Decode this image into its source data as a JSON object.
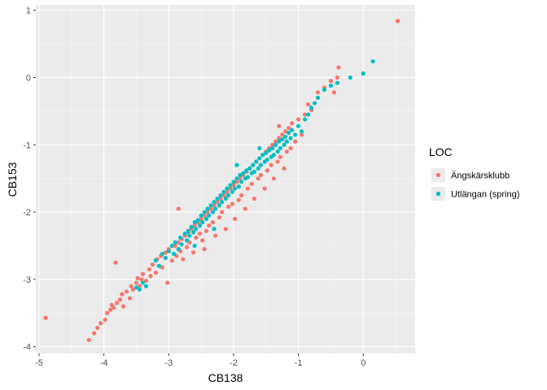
{
  "chart_data": {
    "type": "scatter",
    "xlabel": "CB138",
    "ylabel": "CB153",
    "xlim": [
      -5.05,
      0.8
    ],
    "ylim": [
      -4.1,
      1.08
    ],
    "x_ticks": [
      -5,
      -4,
      -3,
      -2,
      -1,
      0
    ],
    "y_ticks": [
      -4,
      -3,
      -2,
      -1,
      0,
      1
    ],
    "x_tick_labels": [
      "-5",
      "-4",
      "-3",
      "-2",
      "-1",
      "0"
    ],
    "y_tick_labels": [
      "-4",
      "-3",
      "-2",
      "-1",
      "0",
      "1"
    ],
    "grid": true,
    "panel_background": "#ebebeb",
    "legend": {
      "title": "LOC",
      "placement": "right",
      "entries": [
        {
          "label": "Ängskärsklubb",
          "color": "#f8766d"
        },
        {
          "label": "Utlängan (spring)",
          "color": "#00bfc4"
        }
      ]
    },
    "series": [
      {
        "name": "Ängskärsklubb",
        "color": "#f8766d",
        "points": [
          [
            -4.9,
            -3.57
          ],
          [
            -4.23,
            -3.9
          ],
          [
            -4.15,
            -3.8
          ],
          [
            -4.1,
            -3.72
          ],
          [
            -4.05,
            -3.65
          ],
          [
            -3.98,
            -3.6
          ],
          [
            -3.95,
            -3.5
          ],
          [
            -3.9,
            -3.45
          ],
          [
            -3.88,
            -3.38
          ],
          [
            -3.85,
            -3.42
          ],
          [
            -3.82,
            -2.75
          ],
          [
            -3.8,
            -3.35
          ],
          [
            -3.75,
            -3.3
          ],
          [
            -3.72,
            -3.22
          ],
          [
            -3.7,
            -3.4
          ],
          [
            -3.65,
            -3.18
          ],
          [
            -3.6,
            -3.28
          ],
          [
            -3.58,
            -3.1
          ],
          [
            -3.55,
            -3.15
          ],
          [
            -3.5,
            -3.05
          ],
          [
            -3.48,
            -2.98
          ],
          [
            -3.45,
            -3.1
          ],
          [
            -3.42,
            -3.0
          ],
          [
            -3.4,
            -2.92
          ],
          [
            -3.35,
            -3.02
          ],
          [
            -3.3,
            -2.85
          ],
          [
            -3.28,
            -2.95
          ],
          [
            -3.25,
            -2.78
          ],
          [
            -3.2,
            -2.9
          ],
          [
            -3.18,
            -2.7
          ],
          [
            -3.12,
            -2.65
          ],
          [
            -3.1,
            -2.82
          ],
          [
            -3.05,
            -2.6
          ],
          [
            -3.02,
            -3.05
          ],
          [
            -3.0,
            -2.55
          ],
          [
            -2.95,
            -2.72
          ],
          [
            -2.9,
            -2.5
          ],
          [
            -2.88,
            -2.65
          ],
          [
            -2.85,
            -2.45
          ],
          [
            -2.82,
            -2.58
          ],
          [
            -2.8,
            -2.4
          ],
          [
            -2.78,
            -2.7
          ],
          [
            -2.75,
            -2.35
          ],
          [
            -2.72,
            -2.52
          ],
          [
            -2.7,
            -2.3
          ],
          [
            -2.68,
            -2.45
          ],
          [
            -2.65,
            -2.25
          ],
          [
            -2.62,
            -2.6
          ],
          [
            -2.6,
            -2.2
          ],
          [
            -2.58,
            -2.38
          ],
          [
            -2.55,
            -2.15
          ],
          [
            -2.52,
            -2.32
          ],
          [
            -2.5,
            -2.1
          ],
          [
            -2.48,
            -2.42
          ],
          [
            -2.45,
            -2.05
          ],
          [
            -2.42,
            -2.28
          ],
          [
            -2.4,
            -2.0
          ],
          [
            -2.38,
            -2.2
          ],
          [
            -2.35,
            -1.95
          ],
          [
            -2.32,
            -2.15
          ],
          [
            -2.3,
            -1.9
          ],
          [
            -2.28,
            -2.35
          ],
          [
            -2.25,
            -1.85
          ],
          [
            -2.22,
            -2.08
          ],
          [
            -2.2,
            -1.8
          ],
          [
            -2.18,
            -2.0
          ],
          [
            -2.15,
            -1.75
          ],
          [
            -2.12,
            -2.25
          ],
          [
            -2.1,
            -1.7
          ],
          [
            -2.08,
            -1.92
          ],
          [
            -2.05,
            -1.65
          ],
          [
            -2.02,
            -1.88
          ],
          [
            -2.0,
            -1.6
          ],
          [
            -1.98,
            -2.1
          ],
          [
            -1.95,
            -1.55
          ],
          [
            -1.92,
            -1.82
          ],
          [
            -1.9,
            -1.5
          ],
          [
            -1.88,
            -1.75
          ],
          [
            -1.85,
            -1.45
          ],
          [
            -1.82,
            -1.95
          ],
          [
            -1.8,
            -1.4
          ],
          [
            -1.78,
            -1.65
          ],
          [
            -1.75,
            -1.35
          ],
          [
            -1.72,
            -1.58
          ],
          [
            -1.7,
            -1.3
          ],
          [
            -1.68,
            -1.8
          ],
          [
            -1.65,
            -1.25
          ],
          [
            -1.62,
            -1.5
          ],
          [
            -1.6,
            -1.2
          ],
          [
            -1.58,
            -1.45
          ],
          [
            -1.55,
            -1.15
          ],
          [
            -1.52,
            -1.65
          ],
          [
            -1.5,
            -1.1
          ],
          [
            -1.48,
            -1.38
          ],
          [
            -1.45,
            -1.05
          ],
          [
            -1.42,
            -1.3
          ],
          [
            -1.4,
            -1.0
          ],
          [
            -1.38,
            -1.5
          ],
          [
            -1.35,
            -0.95
          ],
          [
            -1.32,
            -1.25
          ],
          [
            -1.3,
            -0.9
          ],
          [
            -1.28,
            -1.18
          ],
          [
            -1.25,
            -0.85
          ],
          [
            -1.22,
            -1.35
          ],
          [
            -1.2,
            -0.8
          ],
          [
            -1.18,
            -1.1
          ],
          [
            -1.15,
            -0.75
          ],
          [
            -1.12,
            -1.05
          ],
          [
            -1.1,
            -0.68
          ],
          [
            -1.05,
            -0.95
          ],
          [
            -1.0,
            -0.62
          ],
          [
            -0.95,
            -0.85
          ],
          [
            -0.9,
            -0.55
          ],
          [
            -0.85,
            -0.4
          ],
          [
            -0.8,
            -0.48
          ],
          [
            -0.7,
            -0.22
          ],
          [
            -0.6,
            -0.15
          ],
          [
            -0.5,
            -0.05
          ],
          [
            -0.45,
            -0.22
          ],
          [
            -0.4,
            0.0
          ],
          [
            -0.38,
            0.15
          ],
          [
            0.53,
            0.84
          ],
          [
            -2.85,
            -1.95
          ],
          [
            -2.45,
            -2.55
          ],
          [
            -1.3,
            -0.72
          ]
        ]
      },
      {
        "name": "Utlängan (spring)",
        "color": "#00bfc4",
        "points": [
          [
            -3.45,
            -3.15
          ],
          [
            -3.4,
            -3.05
          ],
          [
            -3.35,
            -3.1
          ],
          [
            -3.2,
            -2.72
          ],
          [
            -3.15,
            -2.8
          ],
          [
            -3.1,
            -2.62
          ],
          [
            -3.05,
            -2.68
          ],
          [
            -3.0,
            -2.58
          ],
          [
            -2.95,
            -2.5
          ],
          [
            -2.92,
            -2.62
          ],
          [
            -2.9,
            -2.45
          ],
          [
            -2.85,
            -2.55
          ],
          [
            -2.82,
            -2.38
          ],
          [
            -2.8,
            -2.48
          ],
          [
            -2.75,
            -2.32
          ],
          [
            -2.72,
            -2.42
          ],
          [
            -2.7,
            -2.28
          ],
          [
            -2.68,
            -2.35
          ],
          [
            -2.65,
            -2.22
          ],
          [
            -2.62,
            -2.3
          ],
          [
            -2.6,
            -2.15
          ],
          [
            -2.58,
            -2.25
          ],
          [
            -2.55,
            -2.12
          ],
          [
            -2.52,
            -2.2
          ],
          [
            -2.5,
            -2.05
          ],
          [
            -2.48,
            -2.15
          ],
          [
            -2.45,
            -2.0
          ],
          [
            -2.42,
            -2.1
          ],
          [
            -2.4,
            -1.95
          ],
          [
            -2.38,
            -2.05
          ],
          [
            -2.35,
            -1.9
          ],
          [
            -2.32,
            -2.0
          ],
          [
            -2.3,
            -1.85
          ],
          [
            -2.28,
            -1.95
          ],
          [
            -2.25,
            -1.8
          ],
          [
            -2.22,
            -1.9
          ],
          [
            -2.2,
            -1.75
          ],
          [
            -2.18,
            -1.85
          ],
          [
            -2.15,
            -1.7
          ],
          [
            -2.12,
            -1.8
          ],
          [
            -2.1,
            -1.65
          ],
          [
            -2.08,
            -1.75
          ],
          [
            -2.05,
            -1.6
          ],
          [
            -2.02,
            -1.7
          ],
          [
            -2.0,
            -1.55
          ],
          [
            -1.98,
            -1.65
          ],
          [
            -1.95,
            -1.5
          ],
          [
            -1.92,
            -1.62
          ],
          [
            -1.9,
            -1.45
          ],
          [
            -1.88,
            -1.55
          ],
          [
            -1.85,
            -1.42
          ],
          [
            -1.82,
            -1.5
          ],
          [
            -1.8,
            -1.38
          ],
          [
            -1.78,
            -1.48
          ],
          [
            -1.75,
            -1.35
          ],
          [
            -1.72,
            -1.42
          ],
          [
            -1.7,
            -1.3
          ],
          [
            -1.68,
            -1.4
          ],
          [
            -1.65,
            -1.25
          ],
          [
            -1.62,
            -1.35
          ],
          [
            -1.6,
            -1.2
          ],
          [
            -1.58,
            -1.3
          ],
          [
            -1.55,
            -1.15
          ],
          [
            -1.52,
            -1.25
          ],
          [
            -1.5,
            -1.12
          ],
          [
            -1.48,
            -1.22
          ],
          [
            -1.45,
            -1.08
          ],
          [
            -1.42,
            -1.18
          ],
          [
            -1.4,
            -1.05
          ],
          [
            -1.38,
            -1.15
          ],
          [
            -1.35,
            -1.0
          ],
          [
            -1.32,
            -1.1
          ],
          [
            -1.3,
            -0.95
          ],
          [
            -1.28,
            -1.05
          ],
          [
            -1.25,
            -0.92
          ],
          [
            -1.22,
            -1.0
          ],
          [
            -1.2,
            -0.88
          ],
          [
            -1.18,
            -0.95
          ],
          [
            -1.15,
            -0.82
          ],
          [
            -1.12,
            -0.9
          ],
          [
            -1.1,
            -0.78
          ],
          [
            -1.05,
            -0.85
          ],
          [
            -1.0,
            -0.72
          ],
          [
            -0.95,
            -0.8
          ],
          [
            -0.9,
            -0.62
          ],
          [
            -0.85,
            -0.55
          ],
          [
            -0.8,
            -0.45
          ],
          [
            -0.75,
            -0.38
          ],
          [
            -0.7,
            -0.3
          ],
          [
            -0.6,
            -0.18
          ],
          [
            -0.5,
            -0.12
          ],
          [
            -0.4,
            -0.08
          ],
          [
            -0.2,
            0.0
          ],
          [
            0.0,
            0.06
          ],
          [
            0.15,
            0.24
          ],
          [
            -3.5,
            -3.12
          ],
          [
            -2.6,
            -2.5
          ],
          [
            -2.3,
            -2.25
          ],
          [
            -1.95,
            -1.3
          ],
          [
            -1.6,
            -1.05
          ]
        ]
      }
    ]
  }
}
